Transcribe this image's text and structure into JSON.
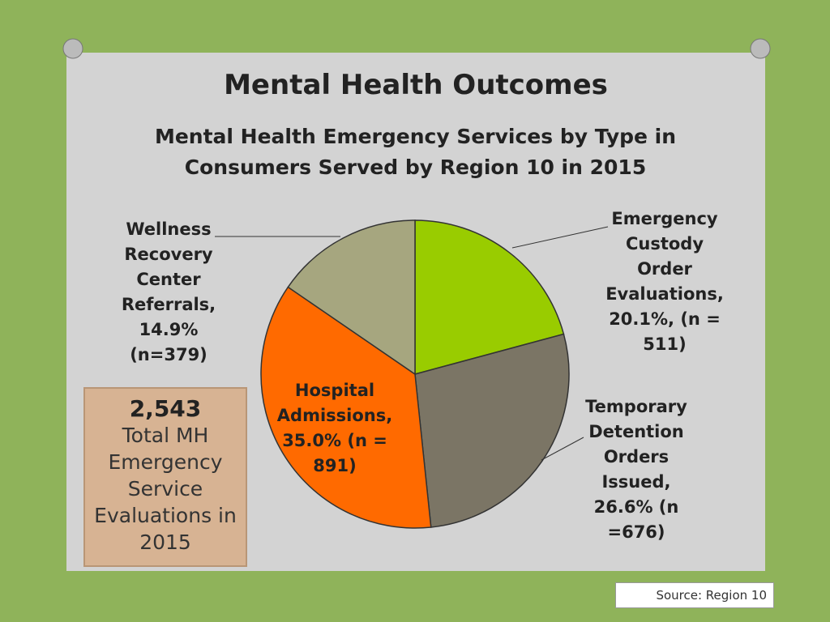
{
  "chart_data": {
    "type": "pie",
    "title": "Mental Health Outcomes",
    "subtitle": "Mental Health Emergency Services by Type in Consumers Served by Region 10 in 2015",
    "values": [
      20.1,
      26.6,
      35.0,
      14.9
    ],
    "value_labels": [
      "Emergency Custody Order Evaluations, 20.1%, (n = 511)",
      "Temporary Detention Orders Issued, 26.6% (n =676)",
      "Hospital Admissions, 35.0% (n = 891)",
      "Wellness Recovery Center Referrals, 14.9% (n=379)"
    ],
    "colors": [
      "#99cc00",
      "#7b7565",
      "#ff6a00",
      "#a6a67f"
    ]
  },
  "total_box": {
    "number": "2,543",
    "text": "Total MH Emergency Service Evaluations in 2015"
  },
  "source": "Source: Region 10"
}
